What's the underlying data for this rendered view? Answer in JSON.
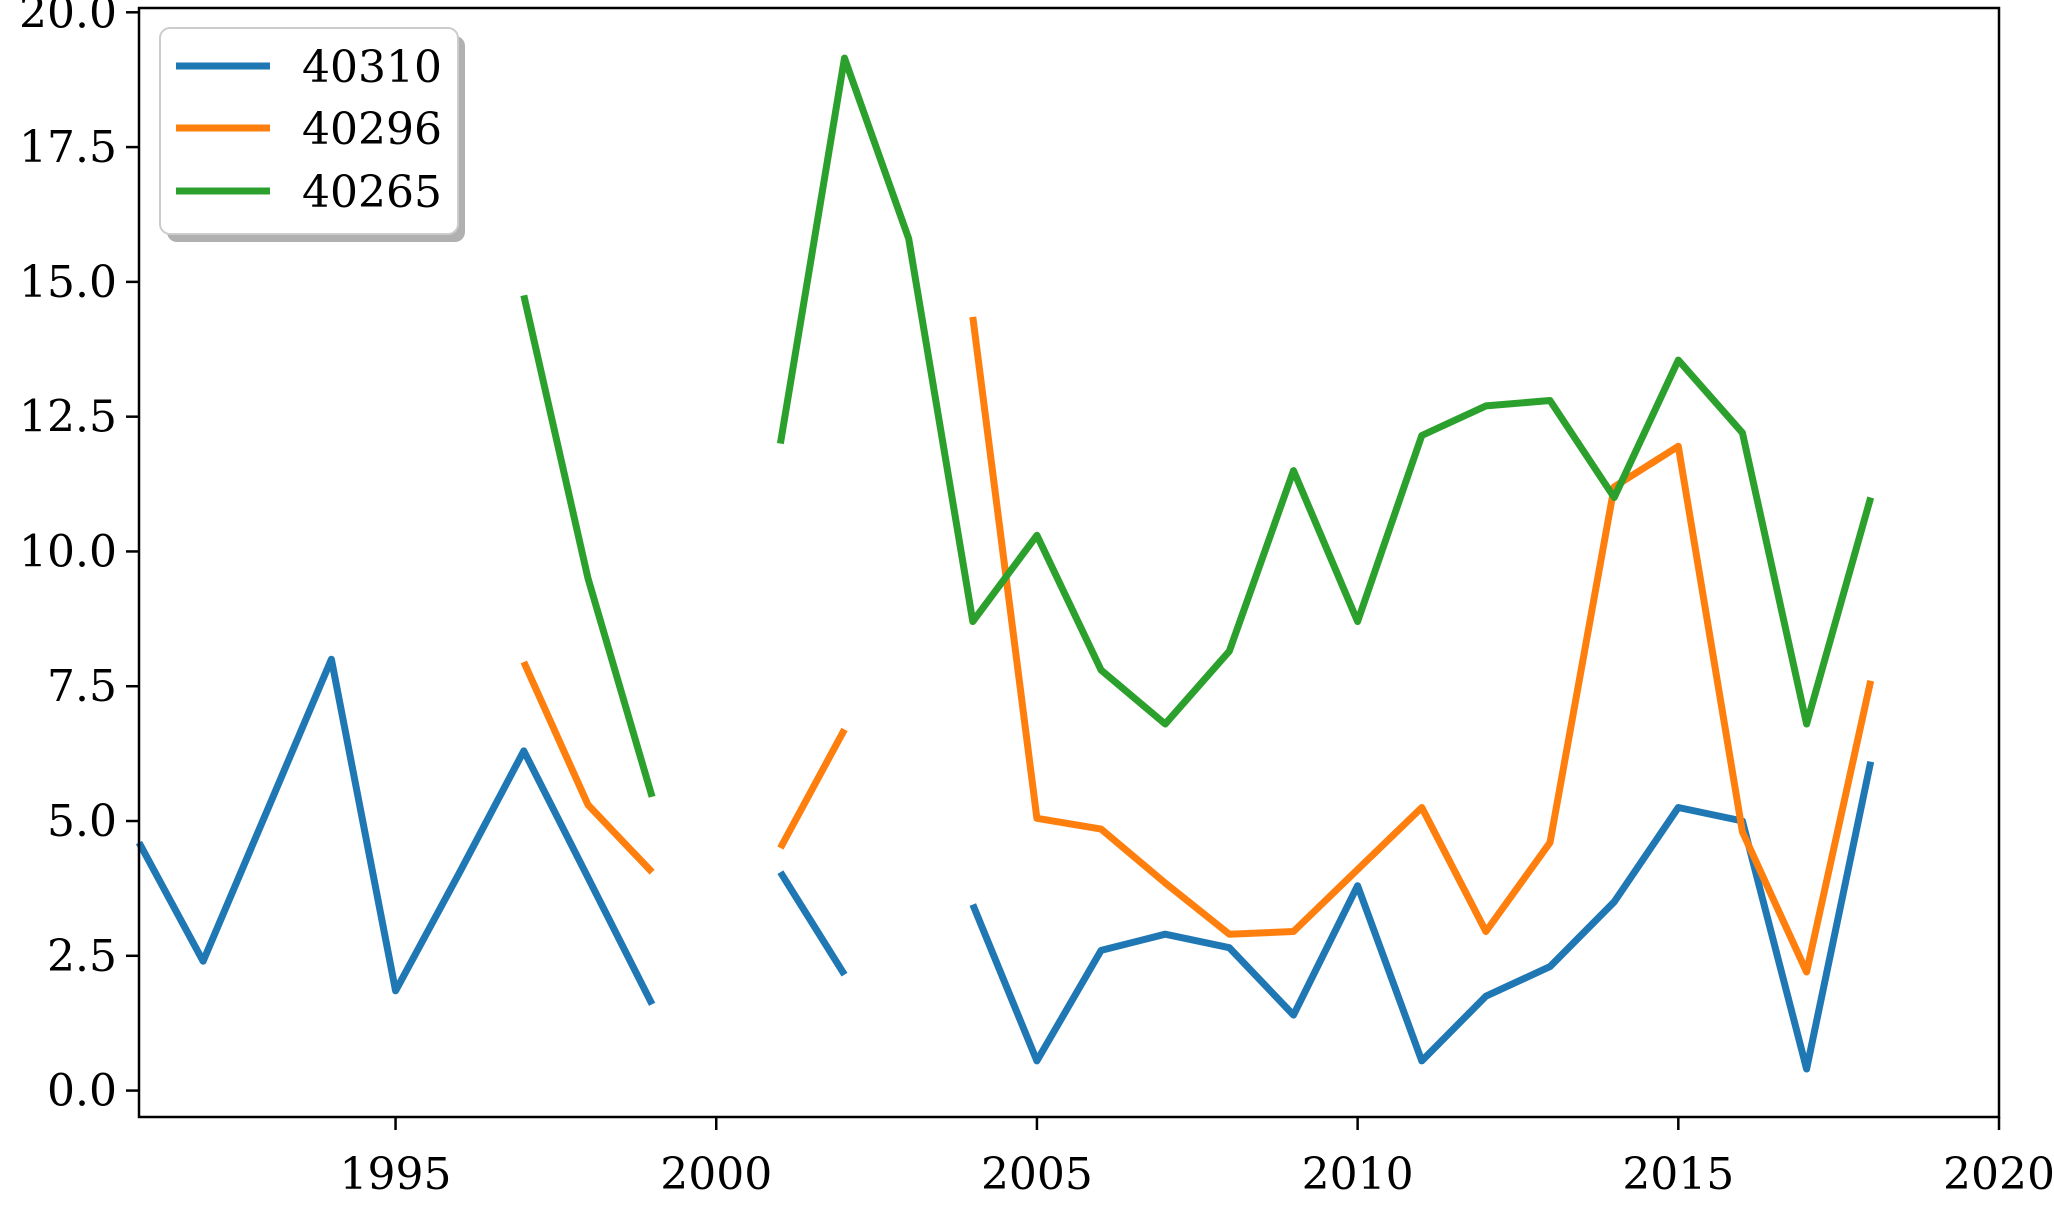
{
  "figure": {
    "background": "#ffffff",
    "spine_color": "#000000",
    "tick_color": "#000000",
    "tick_label_color": "#000000"
  },
  "legend": {
    "position": "upper-left",
    "box_fill": "#ffffff",
    "box_border": "#cccccc",
    "shadow_color": "#b0b0b0"
  },
  "chart_data": {
    "type": "line",
    "title": "",
    "xlabel": "",
    "ylabel": "",
    "grid": false,
    "xlim": [
      1991,
      2020
    ],
    "ylim": [
      -0.49,
      20.08
    ],
    "x_ticks": [
      {
        "value": 1995,
        "label": "1995"
      },
      {
        "value": 2000,
        "label": "2000"
      },
      {
        "value": 2005,
        "label": "2005"
      },
      {
        "value": 2010,
        "label": "2010"
      },
      {
        "value": 2015,
        "label": "2015"
      },
      {
        "value": 2020,
        "label": "2020"
      }
    ],
    "y_ticks": [
      {
        "value": 0.0,
        "label": "0.0"
      },
      {
        "value": 2.5,
        "label": "2.5"
      },
      {
        "value": 5.0,
        "label": "5.0"
      },
      {
        "value": 7.5,
        "label": "7.5"
      },
      {
        "value": 10.0,
        "label": "10.0"
      },
      {
        "value": 12.5,
        "label": "12.5"
      },
      {
        "value": 15.0,
        "label": "15.0"
      },
      {
        "value": 17.5,
        "label": "17.5"
      },
      {
        "value": 20.0,
        "label": "20.0"
      }
    ],
    "x": [
      1991,
      1992,
      1993,
      1994,
      1995,
      1996,
      1997,
      1998,
      1999,
      2000,
      2001,
      2002,
      2003,
      2004,
      2005,
      2006,
      2007,
      2008,
      2009,
      2010,
      2011,
      2012,
      2013,
      2014,
      2015,
      2016,
      2017,
      2018
    ],
    "series": [
      {
        "name": "40310",
        "color": "#1f77b4",
        "values": [
          4.6,
          2.4,
          5.2,
          8.0,
          1.85,
          4.05,
          6.3,
          3.95,
          1.6,
          null,
          4.05,
          2.15,
          null,
          3.45,
          0.55,
          2.6,
          2.9,
          2.65,
          1.4,
          3.8,
          0.55,
          1.75,
          2.3,
          3.5,
          5.25,
          5.0,
          0.4,
          6.1
        ]
      },
      {
        "name": "40296",
        "color": "#ff7f0e",
        "values": [
          null,
          null,
          null,
          null,
          null,
          null,
          7.95,
          5.3,
          4.05,
          null,
          4.5,
          6.7,
          null,
          14.35,
          5.05,
          4.85,
          3.85,
          2.9,
          2.95,
          4.1,
          5.25,
          2.95,
          4.6,
          11.2,
          11.95,
          4.8,
          2.2,
          7.6
        ]
      },
      {
        "name": "40265",
        "color": "#2ca02c",
        "values": [
          null,
          null,
          null,
          null,
          null,
          null,
          14.75,
          9.5,
          5.45,
          null,
          12.0,
          19.15,
          15.8,
          8.7,
          10.3,
          7.8,
          6.8,
          8.15,
          11.5,
          8.7,
          12.15,
          12.7,
          12.8,
          11.0,
          13.55,
          12.2,
          6.8,
          11.0
        ]
      }
    ],
    "legend_entries": [
      "40310",
      "40296",
      "40265"
    ]
  }
}
